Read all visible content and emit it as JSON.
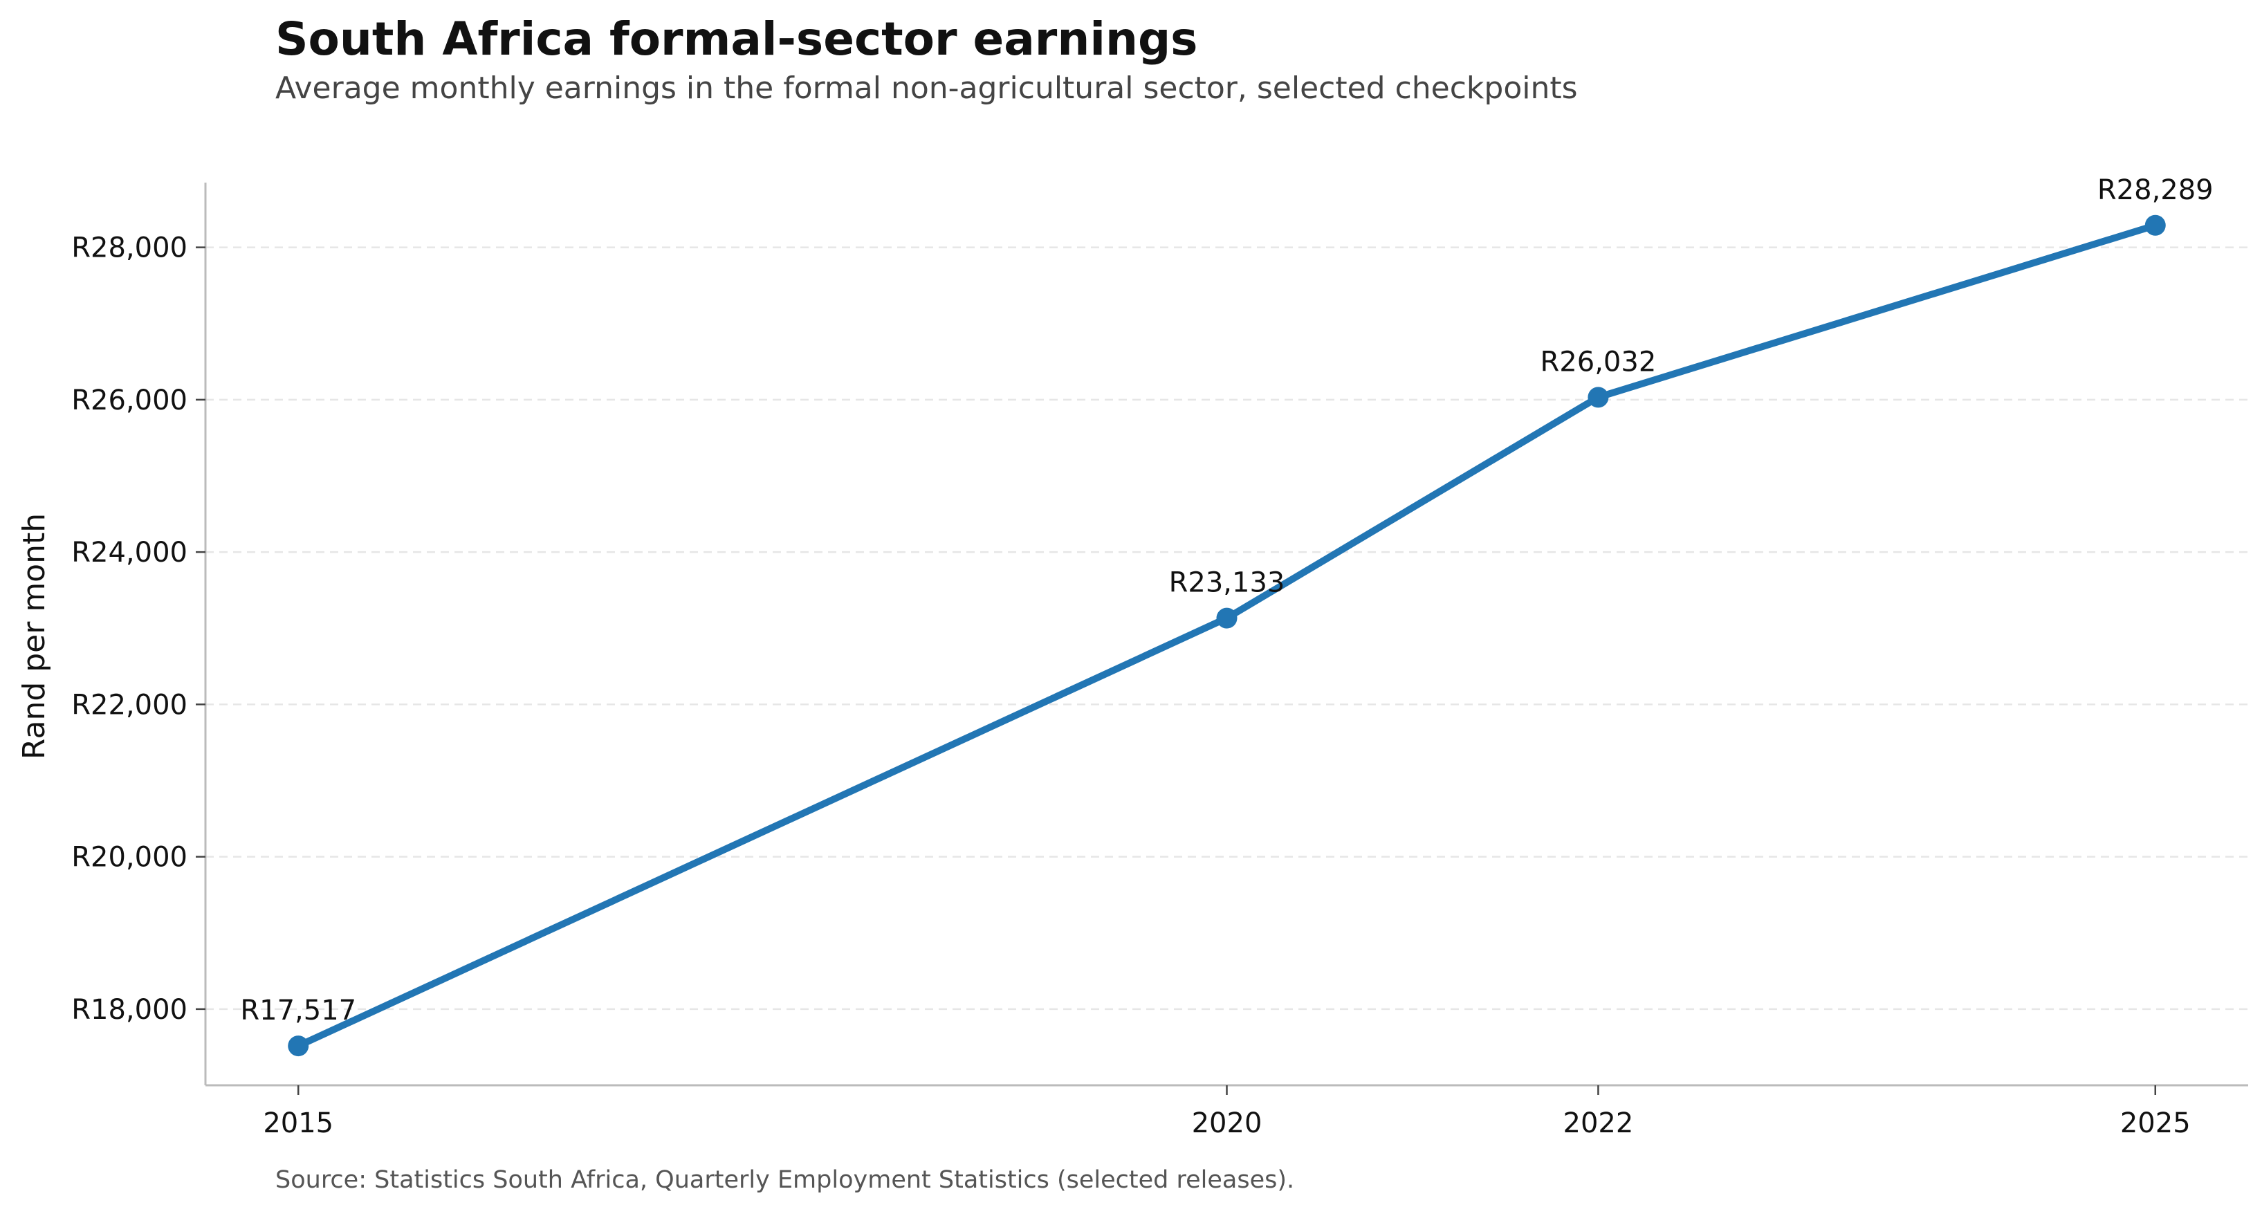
{
  "chart_data": {
    "type": "line",
    "title": "South Africa formal-sector earnings",
    "subtitle": "Average monthly earnings in the formal non-agricultural sector, selected checkpoints",
    "source": "Source: Statistics South Africa, Quarterly Employment Statistics (selected releases).",
    "ylabel": "Rand per month",
    "xlabel": "",
    "x": [
      2015,
      2020,
      2022,
      2025
    ],
    "x_tick_labels": [
      "2015",
      "2020",
      "2022",
      "2025"
    ],
    "series": [
      {
        "values": [
          17517,
          23133,
          26032,
          28289
        ],
        "data_labels": [
          "R17,517",
          "R23,133",
          "R26,032",
          "R28,289"
        ],
        "color": "#2276b4"
      }
    ],
    "y_ticks": [
      18000,
      20000,
      22000,
      24000,
      26000,
      28000
    ],
    "y_tick_labels": [
      "R18,000",
      "R20,000",
      "R22,000",
      "R24,000",
      "R26,000",
      "R28,000"
    ],
    "xlim": [
      2014.5,
      2025.5
    ],
    "ylim": [
      17000,
      28850
    ],
    "grid": "horizontal dashed",
    "legend": "none"
  }
}
